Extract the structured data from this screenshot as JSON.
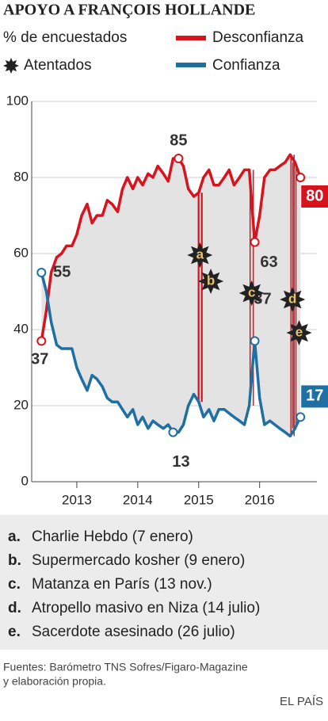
{
  "chart_data": {
    "type": "line",
    "title": "APOYO A FRANÇOIS HOLLANDE",
    "ylabel": "% de encuestados",
    "events_label": "Atentados",
    "x": [
      2012.42,
      2012.5,
      2012.58,
      2012.67,
      2012.75,
      2012.83,
      2012.92,
      2013.0,
      2013.08,
      2013.17,
      2013.25,
      2013.33,
      2013.42,
      2013.5,
      2013.58,
      2013.67,
      2013.75,
      2013.83,
      2013.92,
      2014.0,
      2014.08,
      2014.17,
      2014.25,
      2014.33,
      2014.42,
      2014.5,
      2014.58,
      2014.67,
      2014.75,
      2014.83,
      2014.92,
      2015.0,
      2015.08,
      2015.17,
      2015.25,
      2015.33,
      2015.42,
      2015.5,
      2015.58,
      2015.67,
      2015.75,
      2015.83,
      2015.92,
      2016.0,
      2016.08,
      2016.17,
      2016.25,
      2016.33,
      2016.42,
      2016.5,
      2016.58,
      2016.67
    ],
    "series": [
      {
        "name": "Desconfianza",
        "color": "#d7141e",
        "values": [
          37,
          45,
          55,
          59,
          60,
          62,
          62,
          65,
          70,
          73,
          68,
          70,
          70,
          74,
          73,
          71,
          77,
          80,
          77,
          80,
          78,
          81,
          80,
          83,
          81,
          79,
          85,
          85,
          83,
          77,
          75,
          76,
          80,
          82,
          78,
          78,
          80,
          82,
          78,
          80,
          82,
          82,
          63,
          70,
          80,
          82,
          82,
          83,
          84,
          86,
          84,
          80
        ]
      },
      {
        "name": "Confianza",
        "color": "#1f6fa3",
        "values": [
          55,
          50,
          42,
          36,
          35,
          35,
          35,
          30,
          27,
          24,
          28,
          27,
          25,
          22,
          21,
          21,
          19,
          17,
          19,
          15,
          17,
          14,
          16,
          15,
          14,
          15,
          13,
          13,
          15,
          20,
          23,
          21,
          17,
          19,
          16,
          19,
          19,
          18,
          17,
          16,
          15,
          20,
          37,
          22,
          15,
          16,
          15,
          14,
          13,
          12,
          14,
          17
        ]
      }
    ],
    "xlim": [
      2012.26,
      2016.94
    ],
    "xticks": [
      2013,
      2014,
      2015,
      2016
    ],
    "ylim": [
      0,
      100
    ],
    "yticks": [
      0,
      20,
      40,
      60,
      80,
      100
    ],
    "grid": true,
    "events": [
      {
        "marker": "a",
        "key": "a.",
        "text": "Charlie Hebdo (7 enero)",
        "x": 2015.02
      },
      {
        "marker": "b",
        "key": "b.",
        "text": "Supermercado kosher (9 enero)",
        "x": 2015.03
      },
      {
        "marker": "c",
        "key": "c.",
        "text": "Matanza en París (13 nov.)",
        "x": 2015.87
      },
      {
        "marker": "d",
        "key": "d.",
        "text": "Atropello masivo en Niza (14 julio)",
        "x": 2016.54
      },
      {
        "marker": "e",
        "key": "e.",
        "text": "Sacerdote asesinado (26 julio)",
        "x": 2016.57
      }
    ],
    "source": [
      "Fuentes: Barómetro TNS Sofres/Figaro-Magazine",
      "y elaboración propia."
    ],
    "brand": "EL PAÍS"
  }
}
